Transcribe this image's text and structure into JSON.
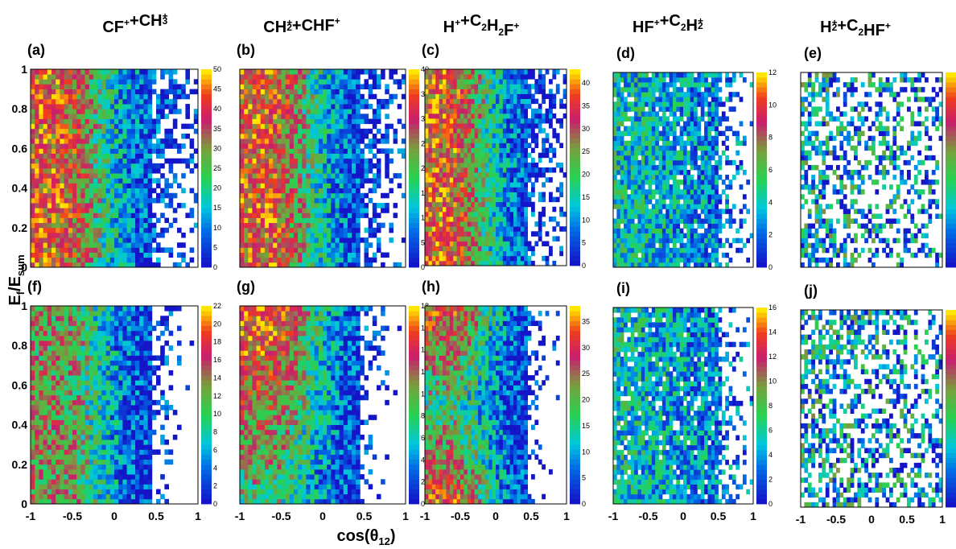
{
  "chart_data": {
    "type": "heatmap",
    "grid": "rows-of-five",
    "x_axis_label": "cos(θ₁₂)",
    "y_axis_label": "E_f/E_sum",
    "xlim": [
      -1,
      1
    ],
    "ylim": [
      0,
      1
    ],
    "x_ticks": [
      "-1",
      "-0.5",
      "0",
      "0.5",
      "1"
    ],
    "y_ticks": [
      "0",
      "0.2",
      "0.4",
      "0.6",
      "0.8",
      "1"
    ],
    "colormap": "rainbow (blue→cyan→green→red→yellow)",
    "channels": [
      {
        "title": "CF⁺+CH₃⁺",
        "parts": [
          [
            "CF",
            "+",
            ""
          ],
          [
            "+",
            "",
            ""
          ],
          [
            "CH",
            "+",
            "3"
          ]
        ]
      },
      {
        "title": "CH₂⁺+CHF⁺",
        "parts": [
          [
            "CH",
            "+",
            "2"
          ],
          [
            "+CHF",
            "+",
            ""
          ]
        ]
      },
      {
        "title": "H⁺+C₂H₂F⁺",
        "parts": [
          [
            "H",
            "+",
            ""
          ],
          [
            "+C",
            "",
            "2"
          ],
          [
            "H",
            "",
            "2"
          ],
          [
            "F",
            "+",
            ""
          ]
        ]
      },
      {
        "title": "HF⁺+C₂H₂⁺",
        "parts": [
          [
            "HF",
            "+",
            ""
          ],
          [
            "+C",
            "",
            "2"
          ],
          [
            "H",
            "+",
            "2"
          ]
        ]
      },
      {
        "title": "H₂⁺+C₂HF⁺",
        "parts": [
          [
            "H",
            "+",
            "2"
          ],
          [
            "+C",
            "",
            "2"
          ],
          [
            "HF",
            "+",
            ""
          ]
        ]
      }
    ],
    "panels": [
      {
        "label": "(a)",
        "row": 0,
        "col": 0,
        "zmax": 50,
        "zticks": [
          "0",
          "5",
          "10",
          "15",
          "20",
          "25",
          "30",
          "35",
          "40",
          "45",
          "50"
        ],
        "peak": "high at cos<0, low near cos≈1"
      },
      {
        "label": "(b)",
        "row": 0,
        "col": 1,
        "zmax": 40,
        "zticks": [
          "0",
          "5",
          "10",
          "15",
          "20",
          "25",
          "30",
          "35",
          "40"
        ],
        "peak": "high at cos<0, low near cos≈1"
      },
      {
        "label": "(c)",
        "row": 0,
        "col": 2,
        "zmax": 43,
        "zticks": [
          "0",
          "5",
          "10",
          "15",
          "20",
          "25",
          "30",
          "35",
          "40"
        ],
        "peak": "high at cos<0, low near cos≈1"
      },
      {
        "label": "(d)",
        "row": 0,
        "col": 3,
        "zmax": 12,
        "zticks": [
          "0",
          "2",
          "4",
          "6",
          "8",
          "10",
          "12"
        ],
        "peak": "flat, sparse at cos≈1"
      },
      {
        "label": "(e)",
        "row": 0,
        "col": 4,
        "zmax": null,
        "zticks": [],
        "peak": "sparse"
      },
      {
        "label": "(f)",
        "row": 1,
        "col": 0,
        "zmax": 22,
        "zticks": [
          "0",
          "2",
          "4",
          "6",
          "8",
          "10",
          "12",
          "14",
          "16",
          "18",
          "20",
          "22"
        ],
        "peak": "high at cos<0"
      },
      {
        "label": "(g)",
        "row": 1,
        "col": 1,
        "zmax": 18,
        "zticks": [
          "0",
          "2",
          "4",
          "6",
          "8",
          "10",
          "12",
          "14",
          "16",
          "18"
        ],
        "peak": "high at cos<0, top region"
      },
      {
        "label": "(h)",
        "row": 1,
        "col": 2,
        "zmax": 38,
        "zticks": [
          "0",
          "5",
          "10",
          "15",
          "20",
          "25",
          "30",
          "35"
        ],
        "peak": "high at top and bottom left"
      },
      {
        "label": "(i)",
        "row": 1,
        "col": 3,
        "zmax": 16,
        "zticks": [
          "0",
          "2",
          "4",
          "6",
          "8",
          "10",
          "12",
          "14",
          "16"
        ],
        "peak": "low values, sparse at cos≈1"
      },
      {
        "label": "(j)",
        "row": 1,
        "col": 4,
        "zmax": null,
        "zticks": [],
        "peak": "sparse"
      }
    ]
  }
}
